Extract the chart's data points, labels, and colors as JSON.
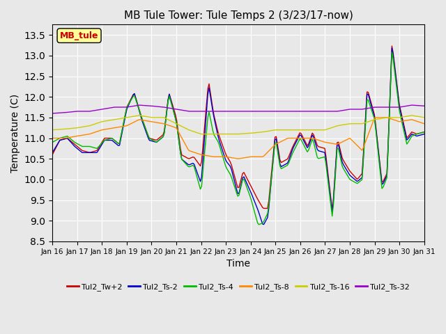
{
  "title": "MB Tule Tower: Tule Temps 2 (3/23/17-now)",
  "xlabel": "Time",
  "ylabel": "Temperature (C)",
  "ylim": [
    8.5,
    13.75
  ],
  "yticks": [
    8.5,
    9.0,
    9.5,
    10.0,
    10.5,
    11.0,
    11.5,
    12.0,
    12.5,
    13.0,
    13.5
  ],
  "xlim": [
    0,
    15
  ],
  "xtick_labels": [
    "Jan 16",
    "Jan 17",
    "Jan 18",
    "Jan 19",
    "Jan 20",
    "Jan 21",
    "Jan 22",
    "Jan 23",
    "Jan 24",
    "Jan 25",
    "Jan 26",
    "Jan 27",
    "Jan 28",
    "Jan 29",
    "Jan 30",
    "Jan 31"
  ],
  "bg_color": "#e8e8e8",
  "legend_label": "MB_tule",
  "series_colors": {
    "Tul2_Tw+2": "#cc0000",
    "Tul2_Ts-2": "#0000cc",
    "Tul2_Ts-4": "#00bb00",
    "Tul2_Ts-8": "#ff8800",
    "Tul2_Ts-16": "#cccc00",
    "Tul2_Ts-32": "#9900cc"
  }
}
